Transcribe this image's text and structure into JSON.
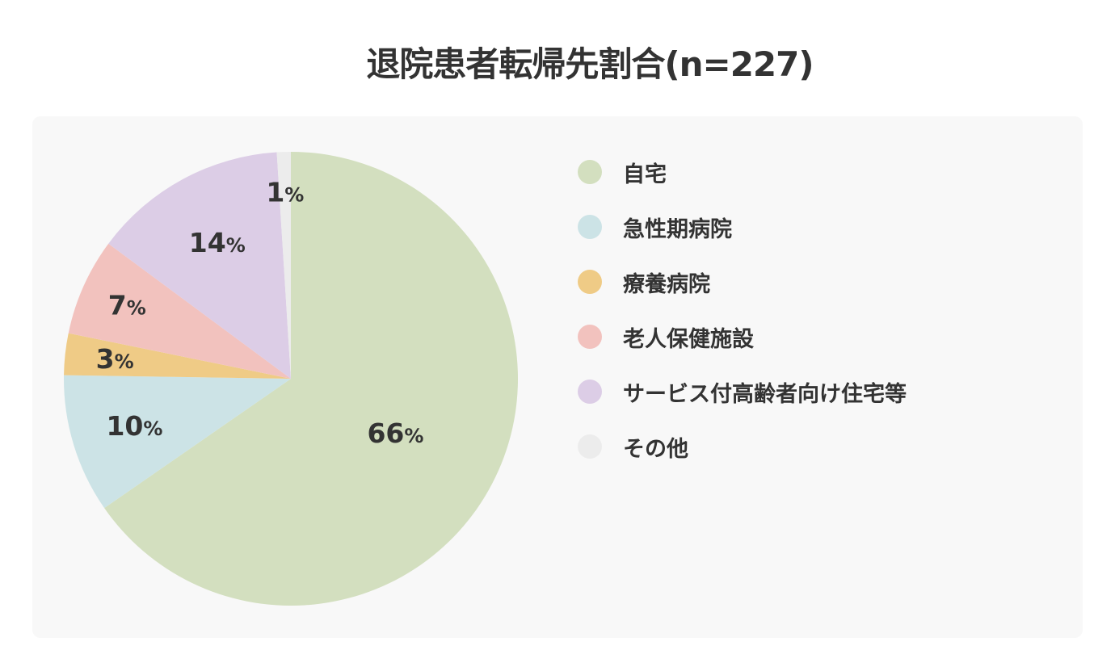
{
  "chart_data": {
    "type": "pie",
    "title": "退院患者転帰先割合(n=227)",
    "start_angle_deg": 0,
    "direction": "clockwise",
    "unit": "%",
    "slices": [
      {
        "label": "自宅",
        "value": 66,
        "color": "#d3dfbf"
      },
      {
        "label": "急性期病院",
        "value": 10,
        "color": "#cce3e6"
      },
      {
        "label": "療養病院",
        "value": 3,
        "color": "#efcb86"
      },
      {
        "label": "老人保健施設",
        "value": 7,
        "color": "#f2c2be"
      },
      {
        "label": "サービス付高齢者向け住宅等",
        "value": 14,
        "color": "#dccde6"
      },
      {
        "label": "その他",
        "value": 1,
        "color": "#ececec"
      }
    ]
  }
}
